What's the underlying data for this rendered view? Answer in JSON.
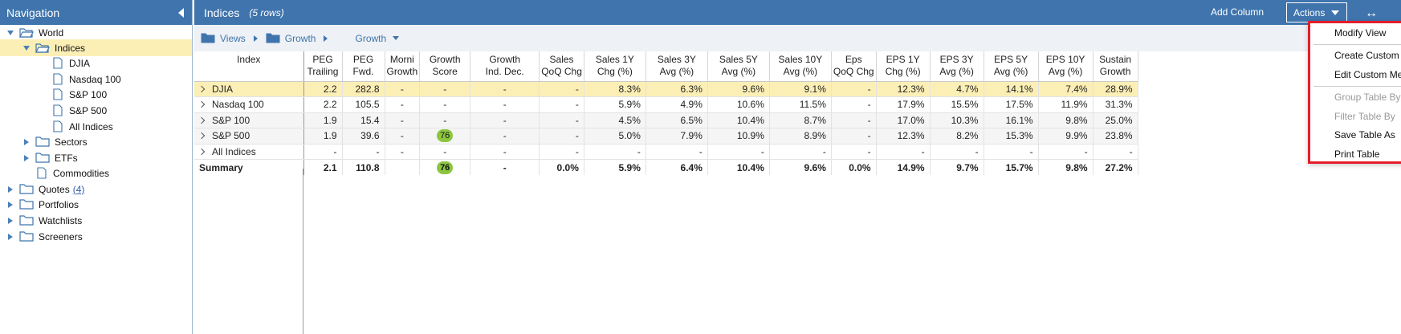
{
  "nav": {
    "title": "Navigation",
    "tree": [
      {
        "label": "World",
        "icon": "folder-open-icon",
        "expanded": true
      },
      {
        "label": "Indices",
        "icon": "folder-open-icon",
        "expanded": true,
        "selected": true
      },
      {
        "label": "DJIA",
        "icon": "document-icon"
      },
      {
        "label": "Nasdaq 100",
        "icon": "document-icon"
      },
      {
        "label": "S&P 100",
        "icon": "document-icon"
      },
      {
        "label": "S&P 500",
        "icon": "document-icon"
      },
      {
        "label": "All Indices",
        "icon": "document-icon"
      },
      {
        "label": "Sectors",
        "icon": "folder-icon"
      },
      {
        "label": "ETFs",
        "icon": "folder-icon"
      },
      {
        "label": "Commodities",
        "icon": "document-icon"
      },
      {
        "label": "Quotes",
        "count": "(4)",
        "icon": "folder-icon"
      },
      {
        "label": "Portfolios",
        "icon": "folder-icon"
      },
      {
        "label": "Watchlists",
        "icon": "folder-icon"
      },
      {
        "label": "Screeners",
        "icon": "folder-icon"
      }
    ]
  },
  "toolbar": {
    "title": "Indices",
    "row_count": "(5 rows)",
    "add_column": "Add Column",
    "actions": "Actions",
    "expand_icon": "horizontal-arrows-icon"
  },
  "breadcrumb": {
    "views": "Views",
    "growth": "Growth",
    "growth_view": "Growth"
  },
  "table": {
    "headers": [
      [
        "Index",
        ""
      ],
      [
        "PEG",
        "Trailing"
      ],
      [
        "PEG",
        "Fwd."
      ],
      [
        "Morni",
        "Growth"
      ],
      [
        "Growth",
        "Score"
      ],
      [
        "Growth",
        "Ind. Dec."
      ],
      [
        "Sales",
        "QoQ Chg"
      ],
      [
        "Sales 1Y",
        "Chg (%)"
      ],
      [
        "Sales 3Y",
        "Avg (%)"
      ],
      [
        "Sales 5Y",
        "Avg (%)"
      ],
      [
        "Sales 10Y",
        "Avg (%)"
      ],
      [
        "Eps",
        "QoQ Chg"
      ],
      [
        "EPS 1Y",
        "Chg (%)"
      ],
      [
        "EPS 3Y",
        "Avg (%)"
      ],
      [
        "EPS 5Y",
        "Avg (%)"
      ],
      [
        "EPS 10Y",
        "Avg (%)"
      ],
      [
        "Sustain",
        "Growth"
      ]
    ],
    "rows": [
      {
        "name": "DJIA",
        "cells": [
          "2.2",
          "282.8",
          "-",
          "-",
          "-",
          "-",
          "8.3%",
          "6.3%",
          "9.6%",
          "9.1%",
          "-",
          "12.3%",
          "4.7%",
          "14.1%",
          "7.4%",
          "28.9%"
        ]
      },
      {
        "name": "Nasdaq 100",
        "cells": [
          "2.2",
          "105.5",
          "-",
          "-",
          "-",
          "-",
          "5.9%",
          "4.9%",
          "10.6%",
          "11.5%",
          "-",
          "17.9%",
          "15.5%",
          "17.5%",
          "11.9%",
          "31.3%"
        ]
      },
      {
        "name": "S&P 100",
        "cells": [
          "1.9",
          "15.4",
          "-",
          "-",
          "-",
          "-",
          "4.5%",
          "6.5%",
          "10.4%",
          "8.7%",
          "-",
          "17.0%",
          "10.3%",
          "16.1%",
          "9.8%",
          "25.0%"
        ]
      },
      {
        "name": "S&P 500",
        "cells": [
          "1.9",
          "39.6",
          "-",
          "76",
          "-",
          "-",
          "5.0%",
          "7.9%",
          "10.9%",
          "8.9%",
          "-",
          "12.3%",
          "8.2%",
          "15.3%",
          "9.9%",
          "23.8%"
        ]
      },
      {
        "name": "All Indices",
        "cells": [
          "-",
          "-",
          "-",
          "-",
          "-",
          "-",
          "-",
          "-",
          "-",
          "-",
          "-",
          "-",
          "-",
          "-",
          "-",
          "-"
        ]
      }
    ],
    "summary": {
      "name": "Summary",
      "cells": [
        "2.1",
        "110.8",
        "",
        "76",
        "-",
        "0.0%",
        "5.9%",
        "6.4%",
        "10.4%",
        "9.6%",
        "0.0%",
        "14.9%",
        "9.7%",
        "15.7%",
        "9.8%",
        "27.2%"
      ]
    }
  },
  "menu": {
    "items": [
      {
        "label": "Modify View",
        "enabled": true
      },
      {
        "label": "Create Custom Metric",
        "enabled": true
      },
      {
        "label": "Edit Custom Metric",
        "enabled": true,
        "submenu": true
      },
      {
        "label": "Group Table By",
        "enabled": false,
        "submenu": true
      },
      {
        "label": "Filter Table By",
        "enabled": false
      },
      {
        "label": "Save Table As",
        "enabled": true,
        "submenu": true
      },
      {
        "label": "Print Table",
        "enabled": true
      }
    ]
  },
  "colors": {
    "header_blue": "#3f74ad",
    "selected_row": "#fcefb6",
    "score_badge": "#8cc63f",
    "menu_highlight_border": "#e41d2b"
  }
}
